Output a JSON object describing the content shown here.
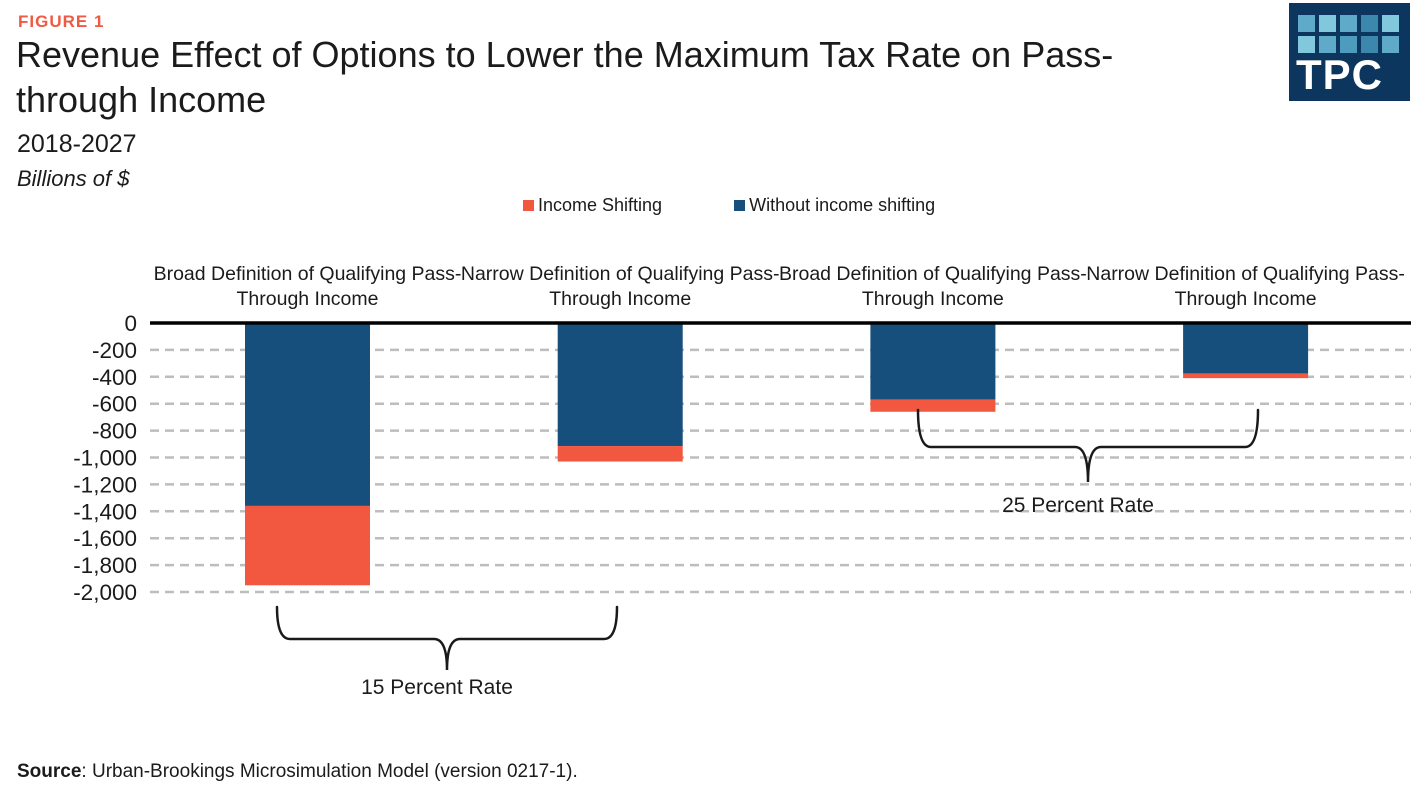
{
  "figure_label": "FIGURE 1",
  "title": "Revenue Effect of Options to Lower the Maximum Tax Rate on Pass-through Income",
  "subtitle": "2018-2027",
  "units": "Billions of $",
  "logo": {
    "text": "TPC",
    "background": "#0c365e",
    "tile_colors": [
      "#5faac8",
      "#82c8dc",
      "#5faac8",
      "#3c87ac",
      "#82c8dc",
      "#82c8dc",
      "#5faac8",
      "#4d9cbe",
      "#3c87ac",
      "#5faac8"
    ]
  },
  "legend": [
    {
      "label": "Income Shifting",
      "color": "#f2573f"
    },
    {
      "label": "Without income shifting",
      "color": "#164e7c"
    }
  ],
  "source": {
    "label": "Source",
    "text": ": Urban-Brookings Microsimulation Model (version 0217-1)."
  },
  "chart_data": {
    "type": "bar",
    "stacked": true,
    "title": "Revenue Effect of Options to Lower the Maximum Tax Rate on Pass-through Income",
    "subtitle": "2018-2027",
    "ylabel": "Billions of $",
    "categories": [
      "Broad Definition of Qualifying Pass-Through Income",
      "Narrow Definition of Qualifying Pass-Through Income",
      "Broad Definition of Qualifying Pass-Through Income",
      "Narrow Definition of Qualifying Pass-Through Income"
    ],
    "series": [
      {
        "name": "Without income shifting",
        "color": "#164e7c",
        "values": [
          -1360,
          -915,
          -570,
          -375
        ]
      },
      {
        "name": "Income Shifting",
        "color": "#f2573f",
        "values": [
          -590,
          -115,
          -90,
          -35
        ]
      }
    ],
    "totals": [
      -1950,
      -1030,
      -660,
      -410
    ],
    "ylim": [
      -2000,
      0
    ],
    "ytick_interval": 200,
    "ytick_labels": [
      "0",
      "-200",
      "-400",
      "-600",
      "-800",
      "-1,000",
      "-1,200",
      "-1,400",
      "-1,600",
      "-1,800",
      "-2,000"
    ],
    "grid": "horizontal-dashed",
    "grid_color": "#bdbdbd",
    "legend_position": "top-center",
    "annotations": [
      {
        "label": "15 Percent Rate",
        "spans_categories": [
          0,
          1
        ]
      },
      {
        "label": "25 Percent Rate",
        "spans_categories": [
          2,
          3
        ]
      }
    ]
  }
}
